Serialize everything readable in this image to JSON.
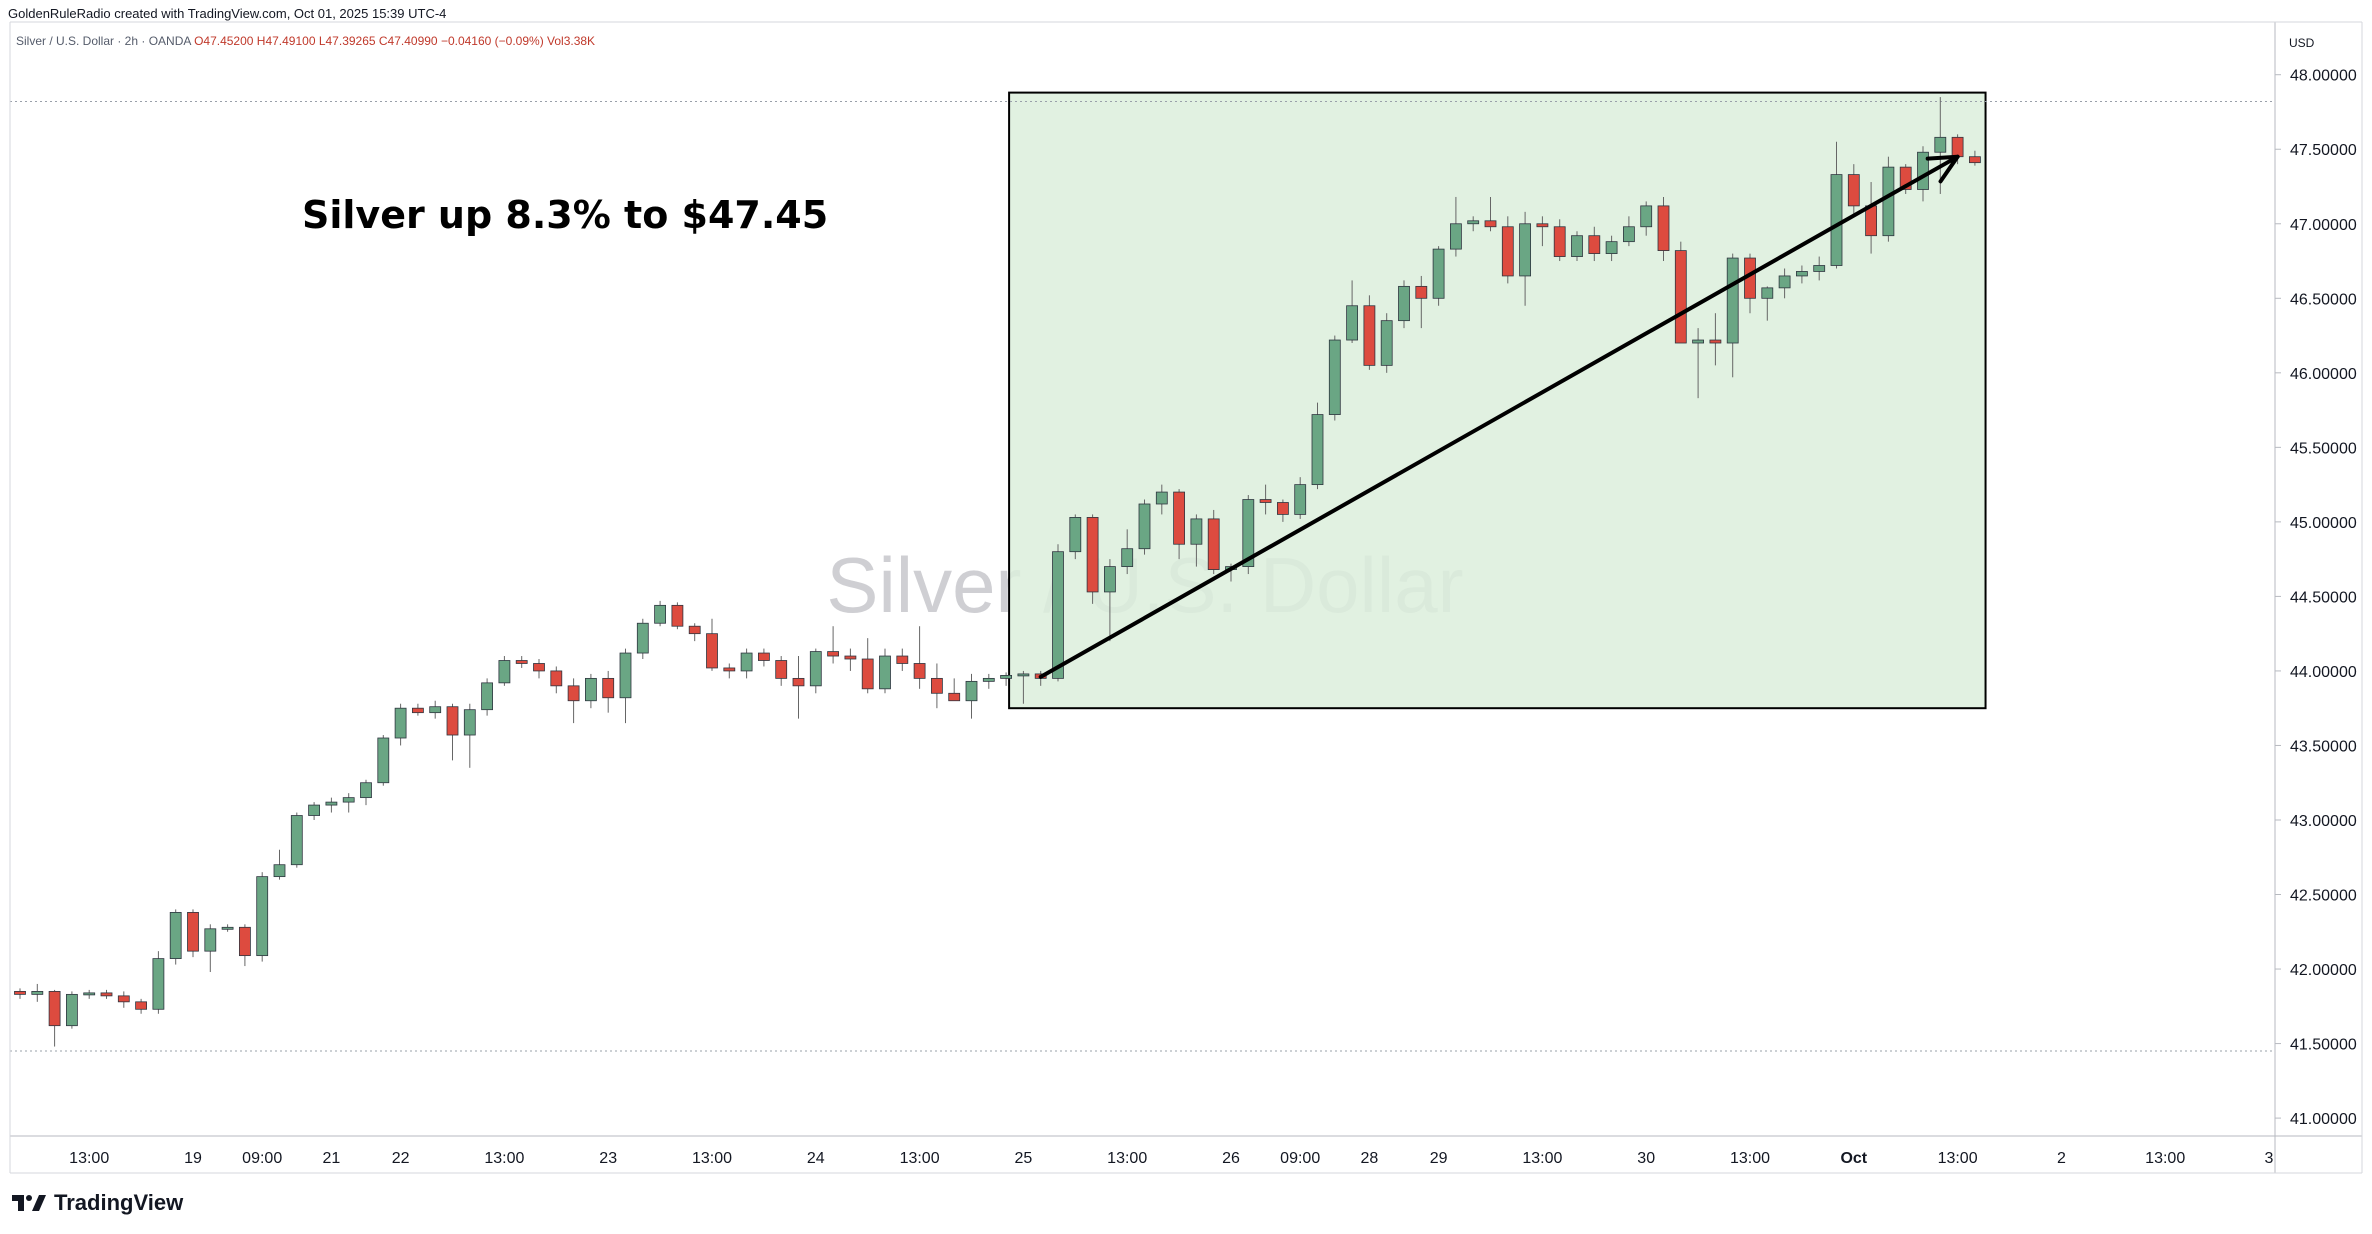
{
  "credit": "GoldenRuleRadio created with TradingView.com, Oct 01, 2025 15:39 UTC-4",
  "symbol_line": {
    "name": "Silver / U.S. Dollar · 2h · OANDA",
    "ohlc": "O47.45200 H47.49100 L47.39265 C47.40990 −0.04160 (−0.09%) Vol3.38K"
  },
  "currency": "USD",
  "brand": "TradingView",
  "colors": {
    "up": "#6aa684",
    "down": "#dd4b3f",
    "box_fill": "#dcefdc",
    "grid": "#e8e8e8"
  },
  "chart_data": {
    "type": "candlestick",
    "title": "Silver / U.S. Dollar",
    "annotation": "Silver up 8.3% to $47.45",
    "watermark": "Silver / U.S. Dollar",
    "ylim": [
      40.9,
      48.3
    ],
    "y_ticks": [
      "41.00000",
      "41.50000",
      "42.00000",
      "42.50000",
      "43.00000",
      "43.50000",
      "44.00000",
      "44.50000",
      "45.00000",
      "45.50000",
      "46.00000",
      "46.50000",
      "47.00000",
      "47.50000",
      "48.00000"
    ],
    "x_ticks": [
      {
        "i": 4,
        "label": "13:00"
      },
      {
        "i": 10,
        "label": "19"
      },
      {
        "i": 14,
        "label": "09:00"
      },
      {
        "i": 18,
        "label": "21"
      },
      {
        "i": 22,
        "label": "22"
      },
      {
        "i": 28,
        "label": "13:00"
      },
      {
        "i": 34,
        "label": "23"
      },
      {
        "i": 40,
        "label": "13:00"
      },
      {
        "i": 46,
        "label": "24"
      },
      {
        "i": 52,
        "label": "13:00"
      },
      {
        "i": 58,
        "label": "25"
      },
      {
        "i": 64,
        "label": "13:00"
      },
      {
        "i": 70,
        "label": "26"
      },
      {
        "i": 74,
        "label": "09:00"
      },
      {
        "i": 78,
        "label": "28"
      },
      {
        "i": 82,
        "label": "29"
      },
      {
        "i": 88,
        "label": "13:00"
      },
      {
        "i": 94,
        "label": "30"
      },
      {
        "i": 100,
        "label": "13:00"
      },
      {
        "i": 106,
        "label": "Oct",
        "bold": true
      },
      {
        "i": 112,
        "label": "13:00"
      },
      {
        "i": 118,
        "label": "2"
      },
      {
        "i": 124,
        "label": "13:00"
      },
      {
        "i": 130,
        "label": "3"
      }
    ],
    "reference_lines": [
      47.82,
      41.45
    ],
    "highlight": {
      "i_start": 57,
      "i_end": 113.5,
      "price_low": 43.75,
      "price_high": 47.88
    },
    "trend_arrow": {
      "from": [
        59,
        43.96
      ],
      "to": [
        112,
        47.45
      ]
    },
    "candles": [
      [
        41.85,
        41.87,
        41.8,
        41.83
      ],
      [
        41.83,
        41.9,
        41.78,
        41.85
      ],
      [
        41.85,
        41.86,
        41.48,
        41.62
      ],
      [
        41.62,
        41.85,
        41.6,
        41.83
      ],
      [
        41.83,
        41.86,
        41.8,
        41.84
      ],
      [
        41.84,
        41.86,
        41.8,
        41.82
      ],
      [
        41.82,
        41.85,
        41.74,
        41.78
      ],
      [
        41.78,
        41.8,
        41.7,
        41.73
      ],
      [
        41.73,
        42.12,
        41.7,
        42.07
      ],
      [
        42.07,
        42.4,
        42.03,
        42.38
      ],
      [
        42.38,
        42.4,
        42.08,
        42.12
      ],
      [
        42.12,
        42.3,
        41.98,
        42.27
      ],
      [
        42.27,
        42.3,
        42.25,
        42.28
      ],
      [
        42.28,
        42.3,
        42.02,
        42.09
      ],
      [
        42.09,
        42.65,
        42.05,
        42.62
      ],
      [
        42.62,
        42.8,
        42.6,
        42.7
      ],
      [
        42.7,
        43.05,
        42.68,
        43.03
      ],
      [
        43.03,
        43.12,
        43.0,
        43.1
      ],
      [
        43.1,
        43.15,
        43.05,
        43.12
      ],
      [
        43.12,
        43.18,
        43.05,
        43.15
      ],
      [
        43.15,
        43.27,
        43.1,
        43.25
      ],
      [
        43.25,
        43.57,
        43.23,
        43.55
      ],
      [
        43.55,
        43.78,
        43.5,
        43.75
      ],
      [
        43.75,
        43.78,
        43.7,
        43.72
      ],
      [
        43.72,
        43.8,
        43.68,
        43.76
      ],
      [
        43.76,
        43.78,
        43.4,
        43.57
      ],
      [
        43.57,
        43.78,
        43.35,
        43.74
      ],
      [
        43.74,
        43.95,
        43.7,
        43.92
      ],
      [
        43.92,
        44.1,
        43.9,
        44.07
      ],
      [
        44.07,
        44.1,
        44.02,
        44.05
      ],
      [
        44.05,
        44.08,
        43.95,
        44.0
      ],
      [
        44.0,
        44.03,
        43.85,
        43.9
      ],
      [
        43.9,
        43.95,
        43.65,
        43.8
      ],
      [
        43.8,
        43.98,
        43.75,
        43.95
      ],
      [
        43.95,
        44.0,
        43.72,
        43.82
      ],
      [
        43.82,
        44.15,
        43.65,
        44.12
      ],
      [
        44.12,
        44.35,
        44.08,
        44.32
      ],
      [
        44.32,
        44.47,
        44.3,
        44.44
      ],
      [
        44.44,
        44.46,
        44.28,
        44.3
      ],
      [
        44.3,
        44.32,
        44.2,
        44.25
      ],
      [
        44.25,
        44.35,
        44.0,
        44.02
      ],
      [
        44.02,
        44.05,
        43.95,
        44.0
      ],
      [
        44.0,
        44.15,
        43.95,
        44.12
      ],
      [
        44.12,
        44.15,
        44.03,
        44.07
      ],
      [
        44.07,
        44.1,
        43.9,
        43.95
      ],
      [
        43.95,
        44.1,
        43.68,
        43.9
      ],
      [
        43.9,
        44.15,
        43.85,
        44.13
      ],
      [
        44.13,
        44.3,
        44.05,
        44.1
      ],
      [
        44.1,
        44.15,
        44.0,
        44.08
      ],
      [
        44.08,
        44.22,
        43.85,
        43.88
      ],
      [
        43.88,
        44.15,
        43.85,
        44.1
      ],
      [
        44.1,
        44.15,
        44.0,
        44.05
      ],
      [
        44.05,
        44.3,
        43.88,
        43.95
      ],
      [
        43.95,
        44.05,
        43.75,
        43.85
      ],
      [
        43.85,
        43.95,
        43.8,
        43.8
      ],
      [
        43.8,
        43.98,
        43.68,
        43.93
      ],
      [
        43.93,
        43.98,
        43.88,
        43.95
      ],
      [
        43.95,
        43.99,
        43.9,
        43.97
      ],
      [
        43.97,
        44.0,
        43.78,
        43.98
      ],
      [
        43.98,
        44.0,
        43.9,
        43.95
      ],
      [
        43.95,
        44.85,
        43.93,
        44.8
      ],
      [
        44.8,
        45.05,
        44.75,
        45.03
      ],
      [
        45.03,
        45.05,
        44.45,
        44.53
      ],
      [
        44.53,
        44.75,
        44.2,
        44.7
      ],
      [
        44.7,
        44.95,
        44.65,
        44.82
      ],
      [
        44.82,
        45.15,
        44.78,
        45.12
      ],
      [
        45.12,
        45.25,
        45.05,
        45.2
      ],
      [
        45.2,
        45.22,
        44.75,
        44.85
      ],
      [
        44.85,
        45.05,
        44.7,
        45.02
      ],
      [
        45.02,
        45.08,
        44.65,
        44.68
      ],
      [
        44.68,
        44.72,
        44.6,
        44.7
      ],
      [
        44.7,
        45.18,
        44.65,
        45.15
      ],
      [
        45.15,
        45.25,
        45.05,
        45.13
      ],
      [
        45.13,
        45.15,
        45.0,
        45.05
      ],
      [
        45.05,
        45.3,
        45.02,
        45.25
      ],
      [
        45.25,
        45.8,
        45.22,
        45.72
      ],
      [
        45.72,
        46.25,
        45.68,
        46.22
      ],
      [
        46.22,
        46.62,
        46.2,
        46.45
      ],
      [
        46.45,
        46.52,
        46.02,
        46.05
      ],
      [
        46.05,
        46.4,
        46.0,
        46.35
      ],
      [
        46.35,
        46.62,
        46.3,
        46.58
      ],
      [
        46.58,
        46.65,
        46.3,
        46.5
      ],
      [
        46.5,
        46.85,
        46.45,
        46.83
      ],
      [
        46.83,
        47.18,
        46.78,
        47.0
      ],
      [
        47.0,
        47.05,
        46.95,
        47.02
      ],
      [
        47.02,
        47.18,
        46.95,
        46.98
      ],
      [
        46.98,
        47.05,
        46.6,
        46.65
      ],
      [
        46.65,
        47.08,
        46.45,
        47.0
      ],
      [
        47.0,
        47.05,
        46.85,
        46.98
      ],
      [
        46.98,
        47.03,
        46.75,
        46.78
      ],
      [
        46.78,
        46.95,
        46.75,
        46.92
      ],
      [
        46.92,
        46.98,
        46.75,
        46.8
      ],
      [
        46.8,
        46.92,
        46.75,
        46.88
      ],
      [
        46.88,
        47.05,
        46.85,
        46.98
      ],
      [
        46.98,
        47.15,
        46.92,
        47.12
      ],
      [
        47.12,
        47.18,
        46.75,
        46.82
      ],
      [
        46.82,
        46.88,
        46.2,
        46.2
      ],
      [
        46.2,
        46.3,
        45.83,
        46.22
      ],
      [
        46.22,
        46.4,
        46.05,
        46.2
      ],
      [
        46.2,
        46.8,
        45.97,
        46.77
      ],
      [
        46.77,
        46.8,
        46.4,
        46.5
      ],
      [
        46.5,
        46.58,
        46.35,
        46.57
      ],
      [
        46.57,
        46.7,
        46.5,
        46.65
      ],
      [
        46.65,
        46.72,
        46.6,
        46.68
      ],
      [
        46.68,
        46.78,
        46.62,
        46.72
      ],
      [
        46.72,
        47.55,
        46.7,
        47.33
      ],
      [
        47.33,
        47.4,
        47.05,
        47.12
      ],
      [
        47.12,
        47.28,
        46.8,
        46.92
      ],
      [
        46.92,
        47.45,
        46.88,
        47.38
      ],
      [
        47.38,
        47.4,
        47.2,
        47.23
      ],
      [
        47.23,
        47.52,
        47.15,
        47.48
      ],
      [
        47.48,
        47.85,
        47.2,
        47.58
      ],
      [
        47.58,
        47.6,
        47.4,
        47.45
      ],
      [
        47.45,
        47.49,
        47.39,
        47.41
      ]
    ]
  }
}
